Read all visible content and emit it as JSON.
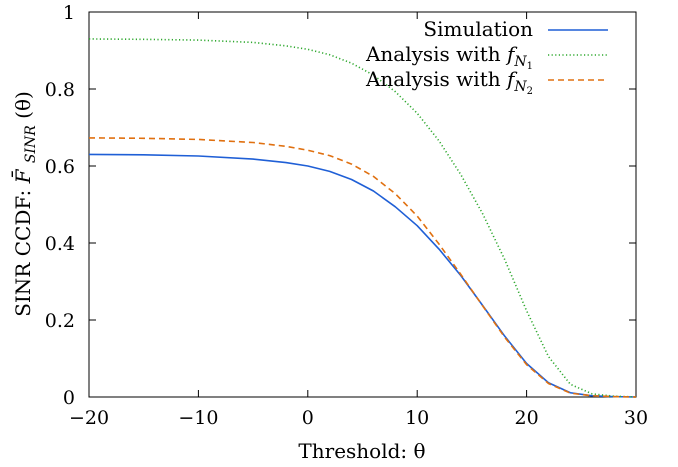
{
  "chart_data": {
    "type": "line",
    "title": "",
    "xlabel": "Threshold:  θ",
    "ylabel": "SINR CCDF:  F̄SINR(θ)",
    "ylabel_parts": {
      "lead": "SINR CCDF:  ",
      "F": "F̄",
      "sub": "SINR",
      "tail": "(θ)"
    },
    "xlim": [
      -20,
      30
    ],
    "ylim": [
      0,
      1
    ],
    "xticks": [
      -20,
      -10,
      0,
      10,
      20,
      30
    ],
    "yticks": [
      0,
      0.2,
      0.4,
      0.6,
      0.8,
      1
    ],
    "xtick_labels": [
      "−20",
      "−10",
      "0",
      "10",
      "20",
      "30"
    ],
    "ytick_labels": [
      "0",
      "0.2",
      "0.4",
      "0.6",
      "0.8",
      "1"
    ],
    "grid": false,
    "legend_position": "top-right",
    "series": [
      {
        "name": "Simulation",
        "legend": {
          "text": "Simulation"
        },
        "color": "#1f5fd6",
        "dash": "solid",
        "x": [
          -20,
          -15,
          -10,
          -5,
          -2,
          0,
          2,
          4,
          6,
          8,
          10,
          12,
          14,
          16,
          18,
          20,
          22,
          24,
          26,
          28,
          30
        ],
        "y": [
          0.63,
          0.629,
          0.626,
          0.618,
          0.609,
          0.6,
          0.586,
          0.565,
          0.535,
          0.494,
          0.445,
          0.384,
          0.315,
          0.237,
          0.158,
          0.087,
          0.037,
          0.011,
          0.003,
          0.001,
          0.0
        ]
      },
      {
        "name": "Analysis with fN1",
        "legend": {
          "text": "Analysis with  f",
          "sub": "N",
          "subsub": "1"
        },
        "color": "#2ea82e",
        "dash": "dotted",
        "x": [
          -20,
          -15,
          -10,
          -5,
          -2,
          0,
          2,
          4,
          6,
          8,
          10,
          12,
          14,
          16,
          18,
          20,
          22,
          24,
          26,
          28,
          30
        ],
        "y": [
          0.93,
          0.929,
          0.927,
          0.921,
          0.912,
          0.903,
          0.889,
          0.867,
          0.836,
          0.793,
          0.737,
          0.665,
          0.577,
          0.475,
          0.357,
          0.224,
          0.105,
          0.033,
          0.008,
          0.002,
          0.0
        ]
      },
      {
        "name": "Analysis with fN2",
        "legend": {
          "text": "Analysis with  f",
          "sub": "N",
          "subsub": "2"
        },
        "color": "#e07010",
        "dash": "dashed",
        "x": [
          -20,
          -15,
          -10,
          -5,
          -2,
          0,
          2,
          4,
          6,
          8,
          10,
          12,
          14,
          16,
          18,
          20,
          22,
          24,
          26,
          28,
          30
        ],
        "y": [
          0.673,
          0.672,
          0.669,
          0.661,
          0.651,
          0.641,
          0.627,
          0.605,
          0.573,
          0.528,
          0.47,
          0.397,
          0.318,
          0.236,
          0.155,
          0.084,
          0.035,
          0.01,
          0.003,
          0.001,
          0.0
        ]
      }
    ]
  }
}
